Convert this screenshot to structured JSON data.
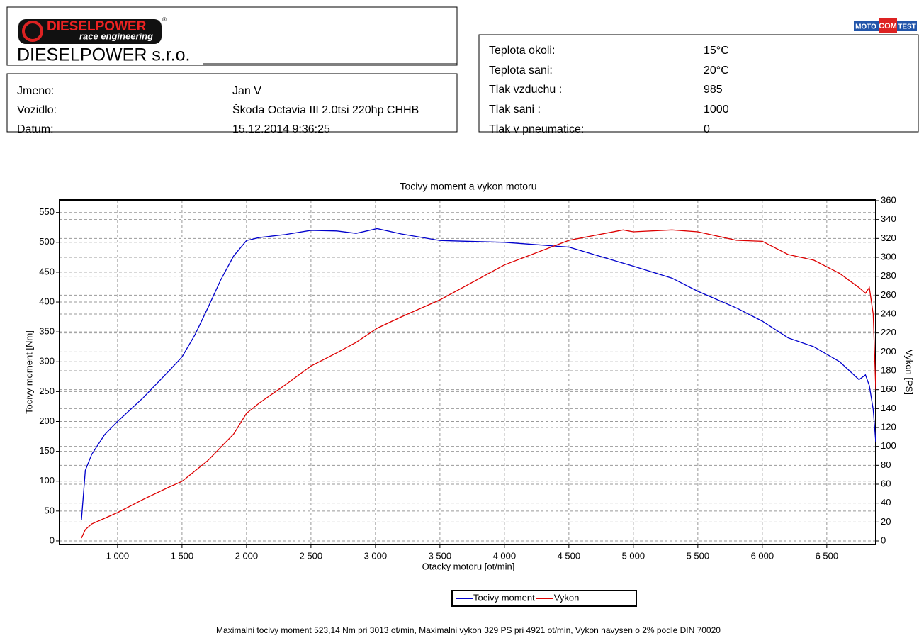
{
  "header": {
    "logo": {
      "name": "DIESELPOWER",
      "tagline": "race engineering",
      "mark": "®"
    },
    "company": "DIESELPOWER s.r.o.",
    "brand": [
      "MOTO",
      "COM",
      "TEST"
    ]
  },
  "customer": {
    "rows": [
      [
        "Jmeno:",
        "Jan V"
      ],
      [
        "Vozidlo:",
        "Škoda Octavia III 2.0tsi 220hp CHHB"
      ],
      [
        "Datum:",
        "15.12.2014 9:36:25"
      ]
    ]
  },
  "conditions": {
    "rows": [
      [
        "Teplota okoli:",
        "15°C"
      ],
      [
        "Teplota sani:",
        "20°C"
      ],
      [
        "Tlak vzduchu :",
        "985"
      ],
      [
        "Tlak sani :",
        "1000"
      ],
      [
        "Tlak v pneumatice:",
        "0"
      ]
    ]
  },
  "chart_data": {
    "type": "line",
    "title": "Tocivy moment a vykon motoru",
    "xlabel": "Otacky motoru [ot/min]",
    "ylabel": "Tocivy moment [Nm]",
    "y2label": "Vykon [PS]",
    "x": [
      720,
      750,
      800,
      900,
      1000,
      1200,
      1400,
      1500,
      1600,
      1700,
      1800,
      1900,
      2000,
      2100,
      2300,
      2500,
      2700,
      2850,
      3013,
      3200,
      3500,
      4000,
      4500,
      4921,
      5000,
      5300,
      5500,
      5800,
      6000,
      6200,
      6400,
      6600,
      6750,
      6800,
      6830,
      6860,
      6880
    ],
    "series": [
      {
        "name": "Tocivy moment",
        "color": "#0000cc",
        "values": [
          35,
          118,
          145,
          178,
          200,
          240,
          285,
          308,
          345,
          390,
          437,
          477,
          503,
          508,
          513,
          520,
          519,
          515,
          523,
          514,
          503,
          500,
          492,
          465,
          460,
          440,
          418,
          390,
          368,
          340,
          325,
          300,
          270,
          278,
          260,
          220,
          165
        ]
      },
      {
        "name": "Vykon",
        "color": "#dd0000",
        "axis": "y2",
        "values": [
          3,
          12,
          18,
          24,
          30,
          44,
          57,
          63,
          74,
          85,
          99,
          113,
          135,
          146,
          165,
          185,
          199,
          210,
          225,
          237,
          255,
          292,
          318,
          329,
          327,
          329,
          327,
          318,
          317,
          303,
          297,
          283,
          268,
          262,
          268,
          240,
          160
        ]
      }
    ],
    "xlim": [
      550,
      6880
    ],
    "xticks": [
      {
        "value": 1000,
        "label": "1 000"
      },
      {
        "value": 1500,
        "label": "1 500"
      },
      {
        "value": 2000,
        "label": "2 000"
      },
      {
        "value": 2500,
        "label": "2 500"
      },
      {
        "value": 3000,
        "label": "3 000"
      },
      {
        "value": 3500,
        "label": "3 500"
      },
      {
        "value": 4000,
        "label": "4 000"
      },
      {
        "value": 4500,
        "label": "4 500"
      },
      {
        "value": 5000,
        "label": "5 000"
      },
      {
        "value": 5500,
        "label": "5 500"
      },
      {
        "value": 6000,
        "label": "6 000"
      },
      {
        "value": 6500,
        "label": "6 500"
      }
    ],
    "ylim": [
      -6,
      571
    ],
    "yticks": [
      0,
      50,
      100,
      150,
      200,
      250,
      300,
      350,
      400,
      450,
      500,
      550
    ],
    "y2lim": [
      -3.75,
      360.75
    ],
    "y2ticks": [
      0,
      20,
      40,
      60,
      80,
      100,
      120,
      140,
      160,
      180,
      200,
      220,
      240,
      260,
      280,
      300,
      320,
      340,
      360
    ],
    "grid": true,
    "legend": "bottom",
    "footnote": "Maximalni tocivy moment 523,14 Nm pri 3013 ot/min,  Maximalni vykon 329 PS pri 4921 ot/min,  Vykon navysen o 2% podle DIN 70020"
  }
}
